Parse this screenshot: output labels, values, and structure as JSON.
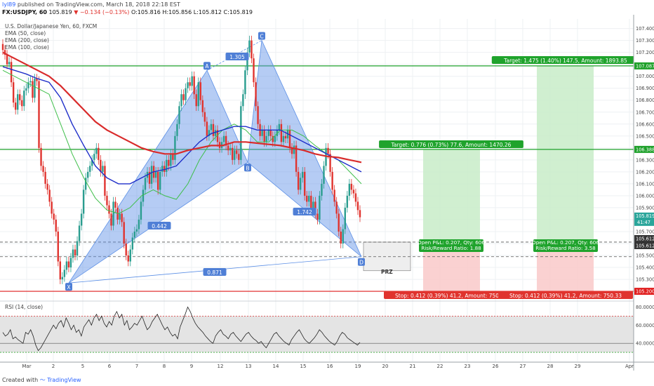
{
  "header": {
    "user": "lyl89",
    "published_text": "published on TradingView.com, March 18, 2018 22:18 EST",
    "symbol": "FX:USDJPY, 60",
    "last": "105.819",
    "change": "−0.134 (−0.13%)",
    "ohlc": "O:105.816 H:105.856 L:105.812 C:105.819"
  },
  "legend": {
    "title": "U.S. Dollar/Japanese Yen, 60, FXCM",
    "ema1": "EMA (50, close)",
    "ema2": "EMA (200, close)",
    "ema3": "EMA (100, close)"
  },
  "colors": {
    "up": "#2a9d8f",
    "down": "#e0332e",
    "pattern": "#5b8fe6",
    "green": "#1ea02a",
    "red": "#e01e1e",
    "ema50": "#3ebf4a",
    "ema100": "#1f2fc9",
    "ema200": "#d92b2b"
  },
  "chart_data": {
    "type": "line",
    "ylim": [
      105.13,
      107.48
    ],
    "price_ticks": [
      "107.400",
      "107.300",
      "107.200",
      "107.100",
      "107.000",
      "106.900",
      "106.800",
      "106.700",
      "106.600",
      "106.500",
      "106.400",
      "106.300",
      "106.200",
      "106.100",
      "106.000",
      "105.900",
      "105.800",
      "105.700",
      "105.600",
      "105.500",
      "105.400",
      "105.300",
      "105.200"
    ],
    "x_ticks": [
      "Mar",
      "2",
      "5",
      "6",
      "7",
      "8",
      "9",
      "12",
      "13",
      "14",
      "15",
      "16",
      "19",
      "20",
      "21",
      "22",
      "23",
      "26",
      "27",
      "28",
      "29",
      "Apr"
    ],
    "levels": [
      {
        "label": "107.087",
        "value": 107.087,
        "color": "#1ea02a"
      },
      {
        "label": "106.388",
        "value": 106.388,
        "color": "#1ea02a"
      },
      {
        "label": "105.612",
        "value": 105.612,
        "color": "#333333"
      },
      {
        "label": "105.612",
        "value": 105.612,
        "color": "#333333"
      },
      {
        "label": "105.200",
        "value": 105.2,
        "color": "#e01e1e"
      }
    ],
    "last_price_tag": "105.819",
    "time_tag": "41:47",
    "points": [
      {
        "name": "X",
        "x": "Mar 2 22:00",
        "y": 105.27
      },
      {
        "name": "A",
        "x": "Mar 9 14:00",
        "y": 107.05
      },
      {
        "name": "B",
        "x": "Mar 13 06:00",
        "y": 106.28
      },
      {
        "name": "C",
        "x": "Mar 13 16:00",
        "y": 107.3
      },
      {
        "name": "D",
        "x": "Mar 19 04:00",
        "y": 105.49
      }
    ],
    "ratios": [
      "1.305",
      "0.442",
      "1.742",
      "0.871"
    ],
    "prz_label": "PRZ",
    "trade_boxes": [
      {
        "target": "Target: 0.776 (0.73%) 77.6, Amount: 1470.26",
        "open": "Open P&L: 0.207, Qty: 606",
        "rr": "Risk/Reward Ratio: 1.88",
        "stop": "Stop: 0.412 (0.39%) 41.2, Amount: 750.33"
      },
      {
        "target": "Target: 1.475 (1.40%) 147.5, Amount: 1893.85",
        "open": "Open P&L: 0.207, Qty: 606",
        "rr": "Risk/Reward Ratio: 3.58",
        "stop": "Stop: 0.412 (0.39%) 41.2, Amount: 750.33"
      }
    ],
    "candle_closes": [
      107.22,
      107.18,
      107.1,
      107.12,
      106.95,
      106.78,
      106.72,
      106.85,
      106.8,
      106.75,
      106.88,
      106.9,
      106.95,
      106.96,
      106.82,
      106.98,
      106.96,
      106.4,
      106.25,
      106.2,
      106.1,
      106.05,
      105.95,
      105.85,
      105.8,
      105.7,
      105.45,
      105.3,
      105.32,
      105.38,
      105.45,
      105.4,
      105.48,
      105.55,
      105.5,
      105.62,
      105.75,
      105.85,
      106.05,
      106.15,
      106.2,
      106.25,
      106.3,
      106.35,
      106.4,
      106.3,
      106.2,
      106.25,
      106.0,
      105.92,
      105.85,
      105.75,
      105.95,
      105.9,
      105.8,
      105.85,
      105.78,
      105.6,
      105.5,
      105.45,
      105.55,
      105.65,
      105.7,
      105.72,
      105.8,
      105.95,
      106.05,
      106.15,
      106.2,
      106.1,
      106.25,
      106.15,
      106.2,
      106.05,
      106.2,
      106.25,
      106.2,
      106.3,
      106.25,
      106.35,
      106.3,
      106.5,
      106.6,
      106.75,
      106.85,
      106.8,
      106.9,
      106.95,
      106.92,
      107.0,
      106.85,
      106.75,
      106.95,
      106.8,
      106.7,
      106.62,
      106.5,
      106.55,
      106.6,
      106.5,
      106.55,
      106.45,
      106.4,
      106.45,
      106.5,
      106.42,
      106.38,
      106.4,
      106.3,
      106.38,
      106.35,
      106.3,
      106.75,
      106.85,
      107.05,
      107.2,
      107.3,
      107.15,
      106.95,
      106.75,
      106.6,
      106.5,
      106.55,
      106.45,
      106.5,
      106.55,
      106.5,
      106.45,
      106.5,
      106.55,
      106.6,
      106.45,
      106.5,
      106.48,
      106.55,
      106.4,
      106.35,
      106.42,
      106.2,
      106.05,
      106.15,
      106.2,
      106.0,
      105.95,
      106.0,
      105.9,
      105.95,
      105.85,
      105.8,
      106.0,
      106.1,
      106.25,
      106.4,
      106.35,
      106.2,
      106.05,
      105.95,
      105.85,
      105.7,
      105.6,
      105.72,
      105.9,
      106.0,
      106.1,
      106.05,
      106.02,
      105.95,
      105.88,
      105.82
    ],
    "ema50": [
      107.05,
      107.0,
      106.95,
      106.9,
      106.85,
      106.6,
      106.35,
      106.15,
      105.98,
      105.88,
      105.85,
      105.9,
      106.0,
      106.05,
      106.0,
      105.97,
      106.1,
      106.3,
      106.45,
      106.55,
      106.6,
      106.55,
      106.45,
      106.45,
      106.55,
      106.55,
      106.5,
      106.42,
      106.35,
      106.3,
      106.2,
      106.1
    ],
    "ema100": [
      107.08,
      107.05,
      107.02,
      106.98,
      106.95,
      106.82,
      106.6,
      106.42,
      106.25,
      106.15,
      106.1,
      106.1,
      106.15,
      106.2,
      106.22,
      106.25,
      106.35,
      106.45,
      106.52,
      106.55,
      106.58,
      106.58,
      106.55,
      106.55,
      106.55,
      106.5,
      106.45,
      106.4,
      106.35,
      106.3,
      106.25,
      106.2
    ],
    "ema200": [
      107.2,
      107.15,
      107.1,
      107.05,
      107.0,
      106.92,
      106.82,
      106.72,
      106.62,
      106.55,
      106.5,
      106.45,
      106.4,
      106.37,
      106.35,
      106.35,
      106.38,
      106.4,
      106.42,
      106.42,
      106.45,
      106.45,
      106.44,
      106.43,
      106.42,
      106.4,
      106.38,
      106.35,
      106.33,
      106.32,
      106.3,
      106.28
    ],
    "rsi": {
      "label": "RSI (14, close)",
      "ticks": [
        "80.0000",
        "60.0000",
        "40.0000"
      ],
      "ylim": [
        20,
        85
      ],
      "bands": [
        70,
        30
      ],
      "values": [
        52,
        48,
        50,
        55,
        45,
        47,
        44,
        42,
        40,
        52,
        50,
        55,
        48,
        38,
        32,
        35,
        40,
        45,
        50,
        55,
        60,
        56,
        62,
        65,
        58,
        68,
        62,
        55,
        60,
        52,
        55,
        48,
        58,
        62,
        66,
        60,
        68,
        72,
        65,
        70,
        62,
        58,
        64,
        60,
        70,
        75,
        68,
        72,
        60,
        65,
        55,
        58,
        62,
        60,
        65,
        70,
        62,
        55,
        58,
        64,
        68,
        72,
        66,
        60,
        55,
        58,
        52,
        48,
        50,
        45,
        58,
        65,
        72,
        80,
        75,
        68,
        62,
        58,
        55,
        52,
        48,
        45,
        42,
        40,
        48,
        52,
        55,
        50,
        48,
        45,
        50,
        52,
        48,
        45,
        42,
        46,
        50,
        52,
        48,
        45,
        43,
        40,
        42,
        38,
        35,
        40,
        45,
        50,
        52,
        48,
        45,
        42,
        40,
        38,
        44,
        48,
        52,
        55,
        50,
        45,
        42,
        40,
        43,
        46,
        50,
        55,
        52,
        48,
        45,
        42,
        40,
        38,
        42,
        48,
        52,
        50,
        46,
        44,
        42,
        40,
        38,
        41
      ]
    }
  }
}
